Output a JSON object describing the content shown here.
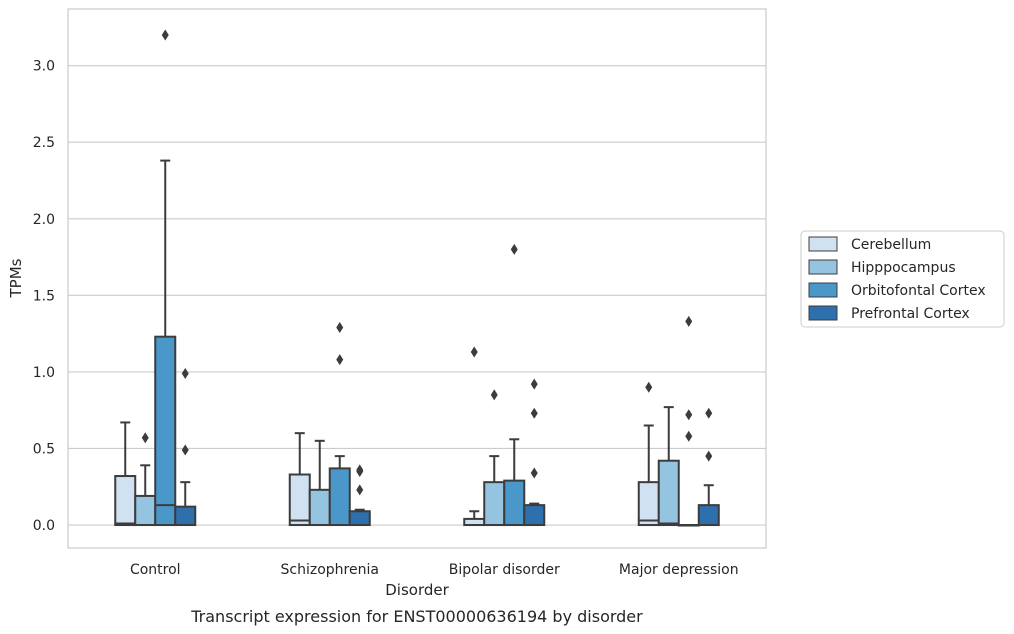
{
  "chart_data": {
    "type": "box",
    "caption": "Transcript expression for ENST00000636194 by disorder",
    "xlabel": "Disorder",
    "ylabel": "TPMs",
    "ylim": [
      -0.15,
      3.37
    ],
    "yticks": [
      0.0,
      0.5,
      1.0,
      1.5,
      2.0,
      2.5,
      3.0
    ],
    "ytick_labels": [
      "0.0",
      "0.5",
      "1.0",
      "1.5",
      "2.0",
      "2.5",
      "3.0"
    ],
    "grid": "horizontal",
    "legend_position": "right",
    "categories": [
      "Control",
      "Schizophrenia",
      "Bipolar disorder",
      "Major depression"
    ],
    "series": [
      {
        "name": "Cerebellum",
        "color": "#d0e1f2",
        "boxes": [
          {
            "q1": 0.0,
            "median": 0.01,
            "q3": 0.32,
            "whisker_low": 0.0,
            "whisker_high": 0.67,
            "outliers": []
          },
          {
            "q1": 0.0,
            "median": 0.03,
            "q3": 0.33,
            "whisker_low": 0.0,
            "whisker_high": 0.6,
            "outliers": []
          },
          {
            "q1": 0.0,
            "median": 0.0,
            "q3": 0.04,
            "whisker_low": 0.0,
            "whisker_high": 0.09,
            "outliers": [
              1.13
            ]
          },
          {
            "q1": 0.0,
            "median": 0.03,
            "q3": 0.28,
            "whisker_low": 0.0,
            "whisker_high": 0.65,
            "outliers": [
              0.9
            ]
          }
        ]
      },
      {
        "name": "Hipppocampus",
        "color": "#94c4df",
        "boxes": [
          {
            "q1": 0.0,
            "median": 0.0,
            "q3": 0.19,
            "whisker_low": 0.0,
            "whisker_high": 0.39,
            "outliers": [
              0.57
            ]
          },
          {
            "q1": 0.0,
            "median": 0.0,
            "q3": 0.23,
            "whisker_low": 0.0,
            "whisker_high": 0.55,
            "outliers": []
          },
          {
            "q1": 0.0,
            "median": 0.0,
            "q3": 0.28,
            "whisker_low": 0.0,
            "whisker_high": 0.45,
            "outliers": [
              0.85
            ]
          },
          {
            "q1": 0.0,
            "median": 0.01,
            "q3": 0.42,
            "whisker_low": 0.0,
            "whisker_high": 0.77,
            "outliers": []
          }
        ]
      },
      {
        "name": "Orbitofontal Cortex",
        "color": "#4a98c9",
        "boxes": [
          {
            "q1": 0.0,
            "median": 0.13,
            "q3": 1.23,
            "whisker_low": 0.0,
            "whisker_high": 2.38,
            "outliers": [
              3.2
            ]
          },
          {
            "q1": 0.0,
            "median": 0.0,
            "q3": 0.37,
            "whisker_low": 0.0,
            "whisker_high": 0.45,
            "outliers": [
              1.08,
              1.29
            ]
          },
          {
            "q1": 0.0,
            "median": 0.0,
            "q3": 0.29,
            "whisker_low": 0.0,
            "whisker_high": 0.56,
            "outliers": [
              1.8
            ]
          },
          {
            "q1": 0.0,
            "median": 0.0,
            "q3": 0.0,
            "whisker_low": 0.0,
            "whisker_high": 0.0,
            "outliers": [
              0.58,
              0.72,
              1.33
            ]
          }
        ]
      },
      {
        "name": "Prefrontal Cortex",
        "color": "#2e6fad",
        "boxes": [
          {
            "q1": 0.0,
            "median": 0.0,
            "q3": 0.12,
            "whisker_low": 0.0,
            "whisker_high": 0.28,
            "outliers": [
              0.49,
              0.99
            ]
          },
          {
            "q1": 0.0,
            "median": 0.0,
            "q3": 0.09,
            "whisker_low": 0.0,
            "whisker_high": 0.1,
            "outliers": [
              0.23,
              0.35,
              0.36
            ]
          },
          {
            "q1": 0.0,
            "median": 0.0,
            "q3": 0.13,
            "whisker_low": 0.0,
            "whisker_high": 0.14,
            "outliers": [
              0.34,
              0.73,
              0.92
            ]
          },
          {
            "q1": 0.0,
            "median": 0.0,
            "q3": 0.13,
            "whisker_low": 0.0,
            "whisker_high": 0.26,
            "outliers": [
              0.45,
              0.73
            ]
          }
        ]
      }
    ]
  }
}
